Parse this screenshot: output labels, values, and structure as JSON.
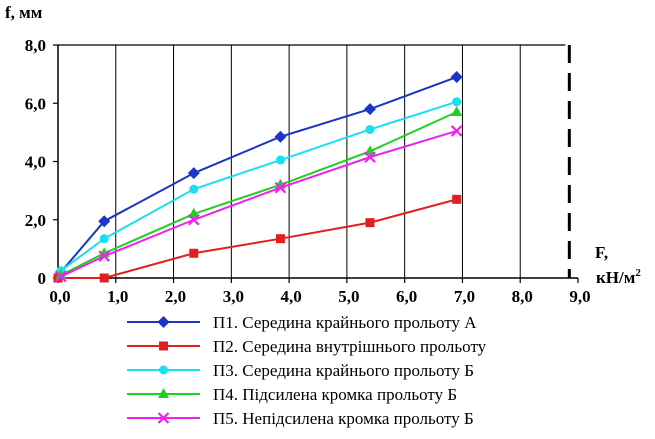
{
  "chart_data": {
    "type": "line",
    "ylabel": "f, мм",
    "xlabel_line1": "F,",
    "xlabel_line2": "кН/м",
    "xlabel_sup": "2",
    "xlim": [
      0,
      9
    ],
    "ylim": [
      0,
      8
    ],
    "grid": "vertical",
    "legend": "bottom",
    "x_ticks": [
      "0,0",
      "1,0",
      "2,0",
      "3,0",
      "4,0",
      "5,0",
      "6,0",
      "7,0",
      "8,0",
      "9,0"
    ],
    "y_ticks": [
      "0",
      "2,0",
      "4,0",
      "6,0",
      "8,0"
    ],
    "x_tick_values": [
      0,
      1,
      2,
      3,
      4,
      5,
      6,
      7,
      8,
      9
    ],
    "y_tick_values": [
      0,
      2,
      4,
      6,
      8
    ],
    "vline": 8.85,
    "series": [
      {
        "name": "П1. Середина крайнього прольоту А",
        "color": "#1a35c8",
        "marker": "diamond",
        "x": [
          0.05,
          0.8,
          2.35,
          3.85,
          5.4,
          6.9
        ],
        "y": [
          0.2,
          1.95,
          3.6,
          4.85,
          5.8,
          6.9
        ]
      },
      {
        "name": "П2. Середина внутрішнього прольоту",
        "color": "#e02020",
        "marker": "square",
        "x": [
          0.0,
          0.8,
          2.35,
          3.85,
          5.4,
          6.9
        ],
        "y": [
          0.0,
          0.0,
          0.85,
          1.35,
          1.9,
          2.7
        ]
      },
      {
        "name": "П3. Середина крайнього прольоту Б",
        "color": "#18e0f0",
        "marker": "circle",
        "x": [
          0.05,
          0.8,
          2.35,
          3.85,
          5.4,
          6.9
        ],
        "y": [
          0.25,
          1.35,
          3.05,
          4.05,
          5.1,
          6.05
        ]
      },
      {
        "name": "П4. Підсилена кромка прольоту Б",
        "color": "#20d020",
        "marker": "triangle",
        "x": [
          0.05,
          0.8,
          2.35,
          3.85,
          5.4,
          6.9
        ],
        "y": [
          0.1,
          0.85,
          2.2,
          3.2,
          4.35,
          5.7
        ]
      },
      {
        "name": "П5. Непідсилена кромка прольоту Б",
        "color": "#f020f0",
        "marker": "x",
        "x": [
          0.05,
          0.8,
          2.35,
          3.85,
          5.4,
          6.9
        ],
        "y": [
          0.05,
          0.75,
          2.0,
          3.1,
          4.15,
          5.05
        ]
      }
    ]
  }
}
